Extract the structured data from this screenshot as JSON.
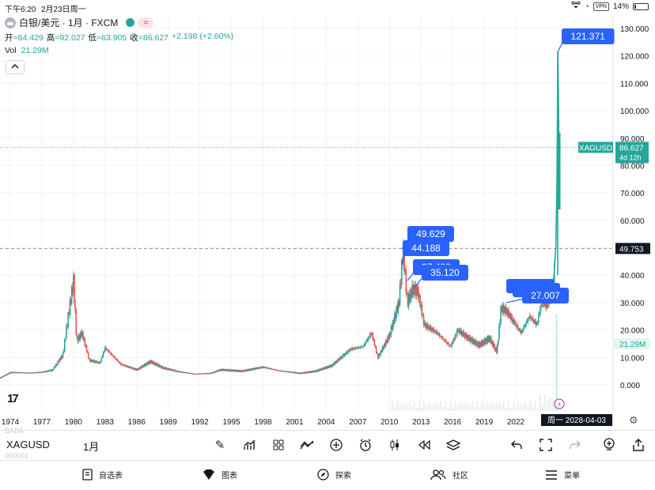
{
  "status_bar": {
    "time": "下午6:20",
    "date": "2月23日周一",
    "vpn": "VPN",
    "battery": "14%"
  },
  "header": {
    "title": "白银/美元 · 1月 · FXCM",
    "ohlc": {
      "open_label": "开",
      "open": "=84.429",
      "high_label": "高",
      "high": "=92.027",
      "low_label": "低",
      "low": "=63.905",
      "close_label": "收",
      "close": "=86.627",
      "change": "+2.198 (+2.60%)"
    },
    "volume_label": "Vol",
    "volume": "21.29M"
  },
  "chart_data": {
    "type": "candlestick",
    "symbol": "XAGUSD",
    "interval": "1月",
    "x_ticks": [
      "1974",
      "1977",
      "1980",
      "1983",
      "1986",
      "1989",
      "1992",
      "1995",
      "1998",
      "2001",
      "2004",
      "2007",
      "2010",
      "2013",
      "2016",
      "2019",
      "2022"
    ],
    "y_ticks": [
      "130.000",
      "120.000",
      "110.000",
      "100.000",
      "90.000",
      "80.000",
      "70.000",
      "60.000",
      "50.000",
      "40.000",
      "30.000",
      "20.000",
      "10.000",
      "0.000"
    ],
    "ylim": [
      -6,
      133
    ],
    "series": [
      {
        "x": 1971.0,
        "y": 1.5
      },
      {
        "x": 1973.0,
        "y": 2.5
      },
      {
        "x": 1974.0,
        "y": 4.5
      },
      {
        "x": 1976.0,
        "y": 4.4
      },
      {
        "x": 1977.0,
        "y": 4.6
      },
      {
        "x": 1978.0,
        "y": 5.4
      },
      {
        "x": 1979.0,
        "y": 11.0
      },
      {
        "x": 1979.5,
        "y": 25.0
      },
      {
        "x": 1980.0,
        "y": 38.0
      },
      {
        "x": 1980.3,
        "y": 16.0
      },
      {
        "x": 1980.8,
        "y": 19.0
      },
      {
        "x": 1981.5,
        "y": 9.0
      },
      {
        "x": 1982.5,
        "y": 8.0
      },
      {
        "x": 1983.0,
        "y": 13.5
      },
      {
        "x": 1983.5,
        "y": 11.5
      },
      {
        "x": 1984.5,
        "y": 7.5
      },
      {
        "x": 1986.0,
        "y": 5.5
      },
      {
        "x": 1987.3,
        "y": 8.5
      },
      {
        "x": 1988.5,
        "y": 6.2
      },
      {
        "x": 1990.0,
        "y": 4.8
      },
      {
        "x": 1991.5,
        "y": 4.0
      },
      {
        "x": 1993.0,
        "y": 4.2
      },
      {
        "x": 1994.0,
        "y": 5.5
      },
      {
        "x": 1996.0,
        "y": 5.0
      },
      {
        "x": 1998.0,
        "y": 6.5
      },
      {
        "x": 1999.5,
        "y": 5.2
      },
      {
        "x": 2001.5,
        "y": 4.2
      },
      {
        "x": 2003.0,
        "y": 5.0
      },
      {
        "x": 2004.5,
        "y": 7.0
      },
      {
        "x": 2006.3,
        "y": 13.0
      },
      {
        "x": 2007.5,
        "y": 14.0
      },
      {
        "x": 2008.3,
        "y": 19.0
      },
      {
        "x": 2008.9,
        "y": 10.0
      },
      {
        "x": 2010.0,
        "y": 18.0
      },
      {
        "x": 2010.9,
        "y": 30.0
      },
      {
        "x": 2011.3,
        "y": 49.6
      },
      {
        "x": 2011.7,
        "y": 30.0
      },
      {
        "x": 2012.2,
        "y": 35.0
      },
      {
        "x": 2012.7,
        "y": 34.0
      },
      {
        "x": 2013.3,
        "y": 22.0
      },
      {
        "x": 2014.5,
        "y": 19.0
      },
      {
        "x": 2015.8,
        "y": 14.0
      },
      {
        "x": 2016.5,
        "y": 20.0
      },
      {
        "x": 2017.5,
        "y": 17.0
      },
      {
        "x": 2018.5,
        "y": 14.5
      },
      {
        "x": 2019.5,
        "y": 17.0
      },
      {
        "x": 2020.2,
        "y": 12.0
      },
      {
        "x": 2020.6,
        "y": 28.0
      },
      {
        "x": 2021.1,
        "y": 27.0
      },
      {
        "x": 2021.8,
        "y": 23.0
      },
      {
        "x": 2022.5,
        "y": 19.0
      },
      {
        "x": 2023.3,
        "y": 25.0
      },
      {
        "x": 2024.0,
        "y": 22.0
      },
      {
        "x": 2024.5,
        "y": 31.0
      },
      {
        "x": 2024.9,
        "y": 29.0
      },
      {
        "x": 2025.3,
        "y": 33.0
      },
      {
        "x": 2025.6,
        "y": 38.0
      },
      {
        "x": 2025.8,
        "y": 50.0
      },
      {
        "x": 2025.9,
        "y": 70.0
      },
      {
        "x": 2026.0,
        "y": 121.4
      },
      {
        "x": 2026.1,
        "y": 86.6
      }
    ],
    "annotations": [
      "121.371",
      "49.629",
      "44.188",
      "37.480",
      "35.120",
      "27.007"
    ],
    "price_label": "XAGUSD",
    "last_price": "86.627",
    "countdown": "4d 12h",
    "crosshair_price": "49.753",
    "volume_label": "21.29M",
    "date_label": "周一 2028-04-03",
    "colors": {
      "up": "#26a69a",
      "down": "#ef5350",
      "annotation": "#2962ff",
      "line": "#22ab94"
    }
  },
  "watermark_lines": [
    "BABA",
    "000001"
  ],
  "toolbar": {
    "symbol": "XAGUSD",
    "interval": "1月",
    "icons": [
      "pencil-icon",
      "chart-type-icon",
      "indicators-icon",
      "compare-icon",
      "add-icon",
      "alert-icon",
      "candles-icon",
      "replay-icon",
      "layers-icon",
      "undo-icon",
      "fullscreen-icon",
      "redo-icon",
      "ideas-icon",
      "share-icon"
    ]
  },
  "bottom_nav": {
    "items": [
      {
        "label": "自选表",
        "icon": "watchlist-icon"
      },
      {
        "label": "图表",
        "icon": "chart-icon"
      },
      {
        "label": "探索",
        "icon": "explore-icon"
      },
      {
        "label": "社区",
        "icon": "community-icon"
      },
      {
        "label": "菜单",
        "icon": "menu-icon"
      }
    ]
  }
}
